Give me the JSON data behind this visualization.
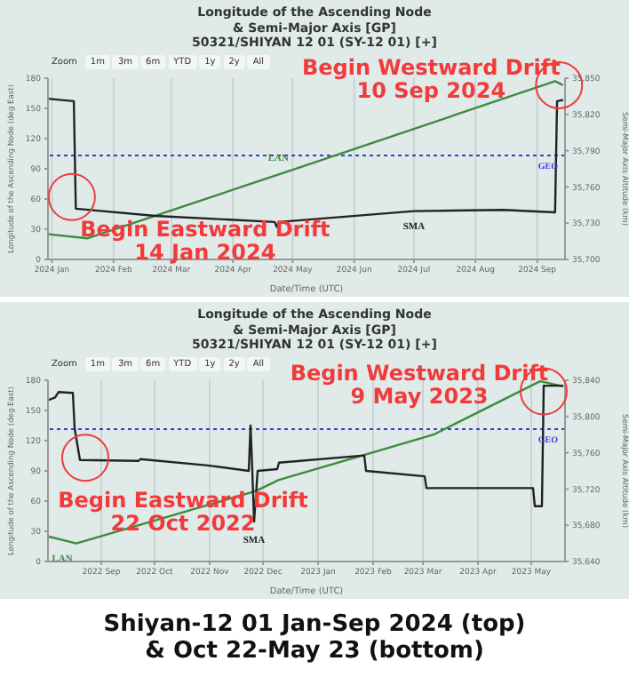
{
  "chart_data": [
    {
      "type": "line",
      "title": "Longitude of the Ascending Node\n& Semi-Major Axis [GP]\n50321/SHIYAN 12 01 (SY-12 01) [+]",
      "xlabel": "Date/Time (UTC)",
      "ylabel": "Longitude of the Ascending Node (deg East)",
      "y2label": "Semi-Major Axis Altitude (km)",
      "xlim": [
        "2023-12-30",
        "2024-09-15"
      ],
      "xticks": [
        {
          "value": "2024-01-01",
          "label": "2024 Jan"
        },
        {
          "value": "2024-02-01",
          "label": "2024 Feb"
        },
        {
          "value": "2024-03-01",
          "label": "2024 Mar"
        },
        {
          "value": "2024-04-01",
          "label": "2024 Apr"
        },
        {
          "value": "2024-05-01",
          "label": "2024 May"
        },
        {
          "value": "2024-06-01",
          "label": "2024 Jun"
        },
        {
          "value": "2024-07-01",
          "label": "2024 Jul"
        },
        {
          "value": "2024-08-01",
          "label": "2024 Aug"
        },
        {
          "value": "2024-09-01",
          "label": "2024 Sep"
        }
      ],
      "ylim": [
        0,
        180
      ],
      "yticks": [
        0,
        30,
        60,
        90,
        120,
        150,
        180
      ],
      "y2lim": [
        35700,
        35850
      ],
      "y2ticks": [
        {
          "value": 35700,
          "label": "35,700"
        },
        {
          "value": 35730,
          "label": "35,730"
        },
        {
          "value": 35760,
          "label": "35,760"
        },
        {
          "value": 35790,
          "label": "35,790"
        },
        {
          "value": 35820,
          "label": "35,820"
        },
        {
          "value": 35850,
          "label": "35,850"
        }
      ],
      "grid": "x",
      "series": [
        {
          "name": "LAN",
          "color": "#3d8b3d",
          "x": [
            "2023-12-30",
            "2024-01-19",
            "2024-05-01",
            "2024-09-10",
            "2024-09-14"
          ],
          "values": [
            25,
            21,
            89,
            177,
            173
          ]
        },
        {
          "name": "SMA",
          "color": "#222222",
          "axis": "y2",
          "x": [
            "2023-12-30",
            "2024-01-12",
            "2024-01-13",
            "2024-02-22",
            "2024-04-22",
            "2024-04-23",
            "2024-04-24",
            "2024-07-01",
            "2024-08-15",
            "2024-09-10",
            "2024-09-11",
            "2024-09-14"
          ],
          "values": [
            35833,
            35831,
            35742,
            35736,
            35731,
            35727,
            35731,
            35740,
            35741,
            35739,
            35831,
            35832
          ]
        }
      ],
      "ref_lines": [
        {
          "axis": "y2",
          "value": 35786,
          "label": "GEO",
          "color": "#3b3bd6",
          "line_style": "dotted"
        }
      ],
      "annotations": [
        "Zoom",
        "1m",
        "3m",
        "6m",
        "YTD",
        "1y",
        "2y",
        "All",
        {
          "text": "Begin Westward Drift\n10 Sep 2024",
          "x": "2024-09-12",
          "y": 173
        },
        {
          "text": "Begin Eastward Drift\n14 Jan 2024",
          "x": "2024-01-11",
          "y": 62
        }
      ]
    },
    {
      "type": "line",
      "title": "Longitude of the Ascending Node\n& Semi-Major Axis [GP]\n50321/SHIYAN 12 01 (SY-12 01) [+]",
      "xlabel": "Date/Time (UTC)",
      "ylabel": "Longitude of the Ascending Node (deg East)",
      "y2label": "Semi-Major Axis Altitude (km)",
      "xlim": [
        "2022-08-02",
        "2023-05-20"
      ],
      "xticks": [
        {
          "value": "2022-09-01",
          "label": "2022 Sep"
        },
        {
          "value": "2022-10-01",
          "label": "2022 Oct"
        },
        {
          "value": "2022-11-01",
          "label": "2022 Nov"
        },
        {
          "value": "2022-12-01",
          "label": "2022 Dec"
        },
        {
          "value": "2023-01-01",
          "label": "2023 Jan"
        },
        {
          "value": "2023-02-01",
          "label": "2023 Feb"
        },
        {
          "value": "2023-03-01",
          "label": "2023 Mar"
        },
        {
          "value": "2023-04-01",
          "label": "2023 Apr"
        },
        {
          "value": "2023-05-01",
          "label": "2023 May"
        }
      ],
      "ylim": [
        0,
        180
      ],
      "yticks": [
        0,
        30,
        60,
        90,
        120,
        150,
        180
      ],
      "y2lim": [
        35640,
        35840
      ],
      "y2ticks": [
        {
          "value": 35640,
          "label": "35,640"
        },
        {
          "value": 35680,
          "label": "35,680"
        },
        {
          "value": 35720,
          "label": "35,720"
        },
        {
          "value": 35760,
          "label": "35,760"
        },
        {
          "value": 35800,
          "label": "35,800"
        },
        {
          "value": 35840,
          "label": "35,840"
        }
      ],
      "grid": "x",
      "series": [
        {
          "name": "LAN",
          "color": "#3d8b3d",
          "x": [
            "2022-08-02",
            "2022-08-18",
            "2022-11-27",
            "2022-12-10",
            "2023-03-07",
            "2023-05-06",
            "2023-05-19"
          ],
          "values": [
            25,
            18,
            70,
            81,
            126,
            179,
            174
          ]
        },
        {
          "name": "SMA",
          "color": "#222222",
          "axis": "y2",
          "x": [
            "2022-08-02",
            "2022-08-06",
            "2022-08-08",
            "2022-08-16",
            "2022-08-17",
            "2022-08-20",
            "2022-09-22",
            "2022-09-23",
            "2022-10-31",
            "2022-11-23",
            "2022-11-24",
            "2022-11-25",
            "2022-11-26",
            "2022-11-28",
            "2022-12-09",
            "2022-12-10",
            "2023-01-27",
            "2023-01-28",
            "2023-03-02",
            "2023-03-03",
            "2023-05-02",
            "2023-05-03",
            "2023-05-07",
            "2023-05-08",
            "2023-05-19"
          ],
          "values": [
            35818,
            35821,
            35827,
            35826,
            35787,
            35752,
            35751,
            35753,
            35746,
            35740,
            35790,
            35740,
            35684,
            35740,
            35742,
            35749,
            35757,
            35740,
            35734,
            35721,
            35721,
            35701,
            35701,
            35834,
            35834
          ]
        }
      ],
      "ref_lines": [
        {
          "axis": "y2",
          "value": 35786,
          "label": "GEO",
          "color": "#3b3bd6",
          "line_style": "dotted"
        }
      ],
      "annotations": [
        "Zoom",
        "1m",
        "3m",
        "6m",
        "YTD",
        "1y",
        "2y",
        "All",
        {
          "text": "Begin Westward Drift\n9 May 2023",
          "x": "2023-05-08",
          "y": 169
        },
        {
          "text": "Begin Eastward Drift\n22 Oct 2022",
          "x": "2022-08-23",
          "y": 103
        }
      ]
    },
    {
      "type": "other",
      "title": "Shiyan-12 01 Jan-Sep 2024 (top)\n& Oct 22-May 23 (bottom)"
    }
  ]
}
